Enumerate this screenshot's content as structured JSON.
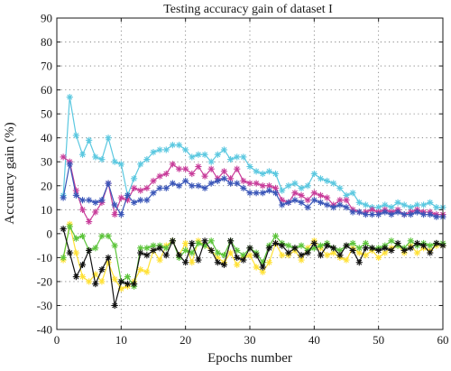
{
  "chart_data": {
    "type": "line",
    "title": "Testing accuracy gain of dataset I",
    "xlabel": "Epochs number",
    "ylabel": "Accuracy gain (%)",
    "xlim": [
      0,
      60
    ],
    "ylim": [
      -40,
      90
    ],
    "xticks": [
      0,
      10,
      20,
      30,
      40,
      50,
      60
    ],
    "yticks": [
      -40,
      -30,
      -20,
      -10,
      0,
      10,
      20,
      30,
      40,
      50,
      60,
      70,
      80,
      90
    ],
    "grid": true,
    "marker": "asterisk",
    "x": [
      1,
      2,
      3,
      4,
      5,
      6,
      7,
      8,
      9,
      10,
      11,
      12,
      13,
      14,
      15,
      16,
      17,
      18,
      19,
      20,
      21,
      22,
      23,
      24,
      25,
      26,
      27,
      28,
      29,
      30,
      31,
      32,
      33,
      34,
      35,
      36,
      37,
      38,
      39,
      40,
      41,
      42,
      43,
      44,
      45,
      46,
      47,
      48,
      49,
      50,
      51,
      52,
      53,
      54,
      55,
      56,
      57,
      58,
      59,
      60
    ],
    "series": [
      {
        "color": "#5bc8e0",
        "values": [
          16,
          57,
          41,
          33,
          39,
          32,
          31,
          40,
          30,
          29,
          16,
          23,
          29,
          31,
          34,
          35,
          35,
          37,
          37,
          35,
          32,
          33,
          33,
          30,
          33,
          35,
          31,
          32,
          32,
          28,
          26,
          25,
          26,
          25,
          18,
          20,
          21,
          19,
          20,
          25,
          23,
          22,
          21,
          19,
          16,
          17,
          13,
          12,
          11,
          11,
          12,
          11,
          13,
          12,
          11,
          12,
          12,
          13,
          11,
          11
        ]
      },
      {
        "color": "#c83c9a",
        "values": [
          32,
          30,
          18,
          10,
          5,
          9,
          13,
          21,
          8,
          15,
          14,
          19,
          18,
          19,
          22,
          24,
          25,
          29,
          27,
          27,
          25,
          28,
          24,
          27,
          23,
          26,
          23,
          27,
          22,
          21,
          21,
          20,
          20,
          19,
          14,
          13,
          17,
          16,
          14,
          17,
          16,
          15,
          12,
          14,
          14,
          10,
          9,
          9,
          10,
          9,
          10,
          9,
          10,
          8,
          9,
          10,
          9,
          9,
          8,
          8
        ]
      },
      {
        "color": "#3a56b8",
        "values": [
          15,
          29,
          16,
          14,
          14,
          13,
          14,
          21,
          12,
          8,
          16,
          13,
          14,
          14,
          17,
          19,
          19,
          21,
          20,
          22,
          20,
          20,
          19,
          21,
          22,
          23,
          21,
          21,
          19,
          17,
          17,
          17,
          18,
          17,
          12,
          13,
          14,
          13,
          11,
          14,
          13,
          12,
          11,
          12,
          11,
          9,
          9,
          8,
          8,
          8,
          9,
          8,
          9,
          8,
          8,
          9,
          8,
          8,
          7,
          7
        ]
      },
      {
        "color": "#ffe135",
        "values": [
          -11,
          4,
          -8,
          -18,
          -20,
          -17,
          -20,
          -12,
          -19,
          -23,
          -22,
          -20,
          -15,
          -16,
          -7,
          -11,
          -5,
          -3,
          -9,
          -4,
          -12,
          -3,
          -5,
          -7,
          -10,
          -12,
          -8,
          -13,
          -10,
          -9,
          -14,
          -16,
          -12,
          -4,
          -9,
          -9,
          -7,
          -11,
          -6,
          -3,
          -6,
          -9,
          -8,
          -10,
          -11,
          -6,
          -8,
          -9,
          -7,
          -10,
          -8,
          -6,
          -5,
          -8,
          -5,
          -8,
          -6,
          -7,
          -5,
          -5
        ]
      },
      {
        "color": "#5cc43a",
        "values": [
          -10,
          3,
          -2,
          -1,
          -7,
          -6,
          -1,
          -1,
          -5,
          -20,
          -18,
          -22,
          -6,
          -6,
          -5,
          -5,
          -6,
          -3,
          -10,
          -7,
          -8,
          -4,
          -5,
          -3,
          -8,
          -9,
          -3,
          -7,
          -9,
          -6,
          -8,
          -12,
          -5,
          -1,
          -4,
          -5,
          -6,
          -5,
          -7,
          -6,
          -5,
          -4,
          -6,
          -7,
          -5,
          -4,
          -6,
          -4,
          -6,
          -6,
          -5,
          -3,
          -5,
          -6,
          -3,
          -5,
          -4,
          -5,
          -4,
          -4
        ]
      },
      {
        "color": "#111111",
        "values": [
          2,
          -8,
          -18,
          -13,
          -7,
          -21,
          -15,
          -10,
          -30,
          -20,
          -21,
          -21,
          -8,
          -9,
          -7,
          -6,
          -9,
          -3,
          -9,
          -12,
          -4,
          -11,
          -3,
          -7,
          -12,
          -13,
          -3,
          -10,
          -11,
          -6,
          -9,
          -14,
          -6,
          -4,
          -5,
          -8,
          -6,
          -9,
          -8,
          -4,
          -9,
          -5,
          -6,
          -9,
          -5,
          -7,
          -12,
          -6,
          -6,
          -7,
          -6,
          -7,
          -4,
          -7,
          -6,
          -4,
          -5,
          -8,
          -4,
          -5
        ]
      }
    ]
  }
}
